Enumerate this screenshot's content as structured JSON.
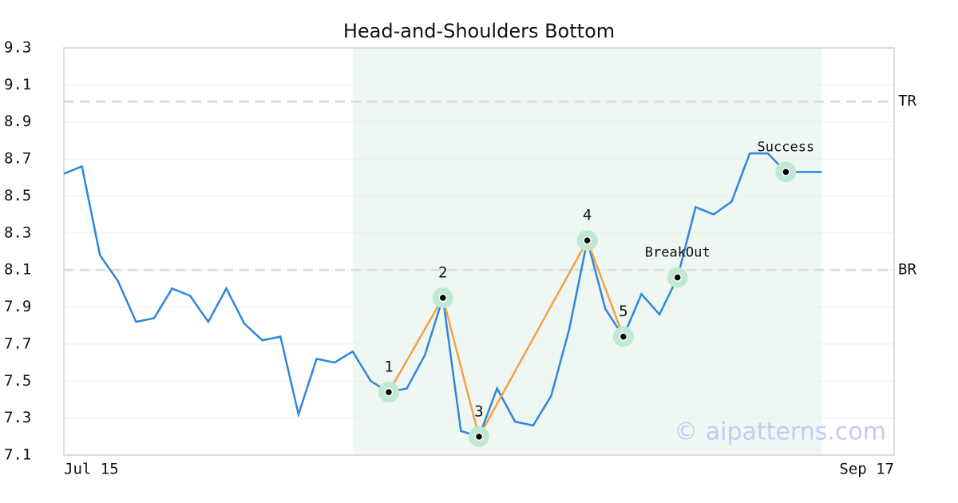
{
  "chart_data": {
    "type": "line",
    "title": "Head-and-Shoulders Bottom",
    "categories": [
      "Jul 15",
      null,
      null,
      null,
      null,
      null,
      null,
      null,
      null,
      null,
      null,
      null,
      null,
      null,
      null,
      null,
      null,
      null,
      null,
      null,
      null,
      null,
      null,
      null,
      null,
      null,
      null,
      null,
      null,
      null,
      null,
      null,
      null,
      null,
      null,
      null,
      null,
      null,
      null,
      null,
      null,
      null,
      null,
      null,
      null,
      null,
      "Sep 17"
    ],
    "values": [
      8.62,
      8.66,
      8.18,
      8.04,
      7.82,
      7.84,
      8.0,
      7.96,
      7.82,
      8.0,
      7.81,
      7.72,
      7.74,
      7.32,
      7.62,
      7.6,
      7.66,
      7.5,
      7.44,
      7.46,
      7.64,
      7.95,
      7.23,
      7.2,
      7.46,
      7.28,
      7.26,
      7.42,
      7.78,
      8.26,
      7.89,
      7.74,
      7.97,
      7.86,
      8.06,
      8.44,
      8.4,
      8.47,
      8.73,
      8.73,
      8.63,
      8.63,
      8.63,
      null,
      null,
      null,
      null
    ],
    "color": "#2e86de",
    "pattern_color": "#f4a142",
    "ylim": [
      7.1,
      9.3
    ],
    "yticks": [
      7.1,
      7.3,
      7.5,
      7.7,
      7.9,
      8.1,
      8.3,
      8.5,
      8.7,
      8.9,
      9.1,
      9.3
    ],
    "grid": true,
    "highlight": [
      16,
      42
    ],
    "pattern_points": [
      {
        "label": "1",
        "x": 18,
        "value": 7.44
      },
      {
        "label": "2",
        "x": 21,
        "value": 7.95
      },
      {
        "label": "3",
        "x": 23,
        "value": 7.2
      },
      {
        "label": "4",
        "x": 29,
        "value": 8.26
      },
      {
        "label": "5",
        "x": 31,
        "value": 7.74
      }
    ],
    "events": [
      {
        "label": "BreakOut",
        "x": 34,
        "value": 8.06
      },
      {
        "label": "Success",
        "x": 40,
        "value": 8.63
      }
    ],
    "levels": [
      {
        "label": "TR",
        "value": 9.01
      },
      {
        "label": "BR",
        "value": 8.1
      }
    ],
    "watermark": "© aipatterns.com"
  }
}
